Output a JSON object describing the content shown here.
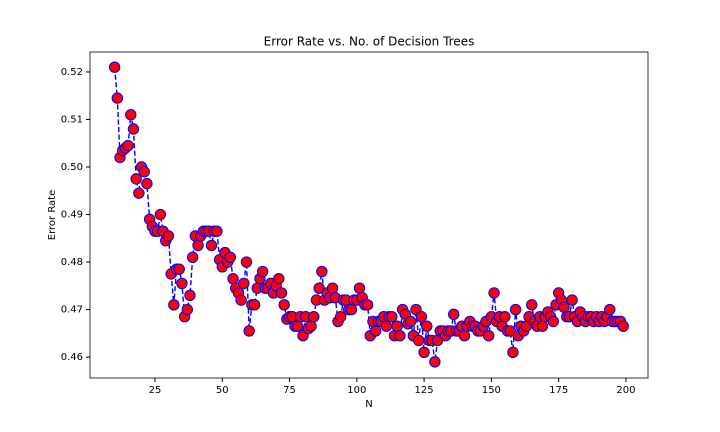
{
  "chart_data": {
    "type": "line",
    "title": "Error Rate vs. No. of Decision Trees",
    "x_label": "N",
    "y_label": "Error Rate",
    "x": [
      10,
      11,
      12,
      13,
      14,
      15,
      16,
      17,
      18,
      19,
      20,
      21,
      22,
      23,
      24,
      25,
      26,
      27,
      28,
      29,
      30,
      31,
      32,
      33,
      34,
      35,
      36,
      37,
      38,
      39,
      40,
      41,
      42,
      43,
      44,
      45,
      46,
      47,
      48,
      49,
      50,
      51,
      52,
      53,
      54,
      55,
      56,
      57,
      58,
      59,
      60,
      61,
      62,
      63,
      64,
      65,
      66,
      67,
      68,
      69,
      70,
      71,
      72,
      73,
      74,
      75,
      76,
      77,
      78,
      79,
      80,
      81,
      82,
      83,
      84,
      85,
      86,
      87,
      88,
      89,
      90,
      91,
      92,
      93,
      94,
      95,
      96,
      97,
      98,
      99,
      100,
      101,
      102,
      103,
      104,
      105,
      106,
      107,
      108,
      109,
      110,
      111,
      112,
      113,
      114,
      115,
      116,
      117,
      118,
      119,
      120,
      121,
      122,
      123,
      124,
      125,
      126,
      127,
      128,
      129,
      130,
      131,
      132,
      133,
      134,
      135,
      136,
      137,
      138,
      139,
      140,
      141,
      142,
      143,
      144,
      145,
      146,
      147,
      148,
      149,
      150,
      151,
      152,
      153,
      154,
      155,
      156,
      157,
      158,
      159,
      160,
      161,
      162,
      163,
      164,
      165,
      166,
      167,
      168,
      169,
      170,
      171,
      172,
      173,
      174,
      175,
      176,
      177,
      178,
      179,
      180,
      181,
      182,
      183,
      184,
      185,
      186,
      187,
      188,
      189,
      190,
      191,
      192,
      193,
      194,
      195,
      196,
      197,
      198,
      199
    ],
    "series": [
      {
        "values": [
          0.521,
          0.5145,
          0.502,
          0.5035,
          0.504,
          0.5045,
          0.511,
          0.508,
          0.4975,
          0.4945,
          0.5,
          0.499,
          0.4965,
          0.489,
          0.4875,
          0.4865,
          0.4865,
          0.49,
          0.4865,
          0.4845,
          0.4855,
          0.4775,
          0.471,
          0.4785,
          0.4785,
          0.4755,
          0.4685,
          0.47,
          0.473,
          0.481,
          0.4855,
          0.4835,
          0.4855,
          0.4865,
          0.4865,
          0.4865,
          0.4835,
          0.4865,
          0.4865,
          0.4805,
          0.479,
          0.482,
          0.48,
          0.481,
          0.4765,
          0.4745,
          0.4735,
          0.472,
          0.4755,
          0.48,
          0.4655,
          0.471,
          0.471,
          0.4745,
          0.4765,
          0.478,
          0.4745,
          0.4745,
          0.4755,
          0.4735,
          0.475,
          0.4765,
          0.4735,
          0.471,
          0.468,
          0.4685,
          0.4685,
          0.4665,
          0.4665,
          0.4685,
          0.4645,
          0.4685,
          0.466,
          0.4665,
          0.4685,
          0.472,
          0.4745,
          0.478,
          0.472,
          0.4735,
          0.4725,
          0.4745,
          0.4725,
          0.4675,
          0.4685,
          0.472,
          0.472,
          0.47,
          0.47,
          0.472,
          0.472,
          0.4745,
          0.4725,
          0.471,
          0.471,
          0.4645,
          0.4675,
          0.4655,
          0.4675,
          0.4675,
          0.4685,
          0.4665,
          0.4685,
          0.4685,
          0.4645,
          0.4665,
          0.4645,
          0.47,
          0.469,
          0.467,
          0.4675,
          0.4645,
          0.47,
          0.4635,
          0.4685,
          0.461,
          0.4665,
          0.4635,
          0.4635,
          0.459,
          0.4635,
          0.4655,
          0.4655,
          0.4645,
          0.4655,
          0.4655,
          0.469,
          0.4655,
          0.4655,
          0.4665,
          0.4645,
          0.4665,
          0.4675,
          0.4665,
          0.4665,
          0.4655,
          0.4655,
          0.4665,
          0.4675,
          0.4645,
          0.4685,
          0.4735,
          0.4675,
          0.4685,
          0.4665,
          0.4685,
          0.4655,
          0.4655,
          0.461,
          0.47,
          0.4645,
          0.4665,
          0.4655,
          0.4665,
          0.4685,
          0.471,
          0.4675,
          0.4665,
          0.4685,
          0.4665,
          0.4685,
          0.4695,
          0.4685,
          0.4675,
          0.471,
          0.4735,
          0.472,
          0.4705,
          0.4685,
          0.4685,
          0.472,
          0.4685,
          0.4675,
          0.4695,
          0.4685,
          0.4675,
          0.4685,
          0.4685,
          0.4675,
          0.4685,
          0.4675,
          0.4685,
          0.4675,
          0.4685,
          0.47,
          0.4675,
          0.4675,
          0.4675,
          0.4675,
          0.4665
        ]
      }
    ],
    "line_color": "#0000ff",
    "line_style": "dashed",
    "marker_color": "#ff0000",
    "marker_edge_color": "#0000ff",
    "xlim": [
      0.85,
      208.2
    ],
    "ylim": [
      0.4556,
      0.5242
    ],
    "xticks": [
      25,
      50,
      75,
      100,
      125,
      150,
      175,
      200
    ],
    "yticks": [
      0.46,
      0.47,
      0.48,
      0.49,
      {
        "value": 0.5,
        "label": "0.50"
      },
      0.51,
      0.52
    ]
  }
}
